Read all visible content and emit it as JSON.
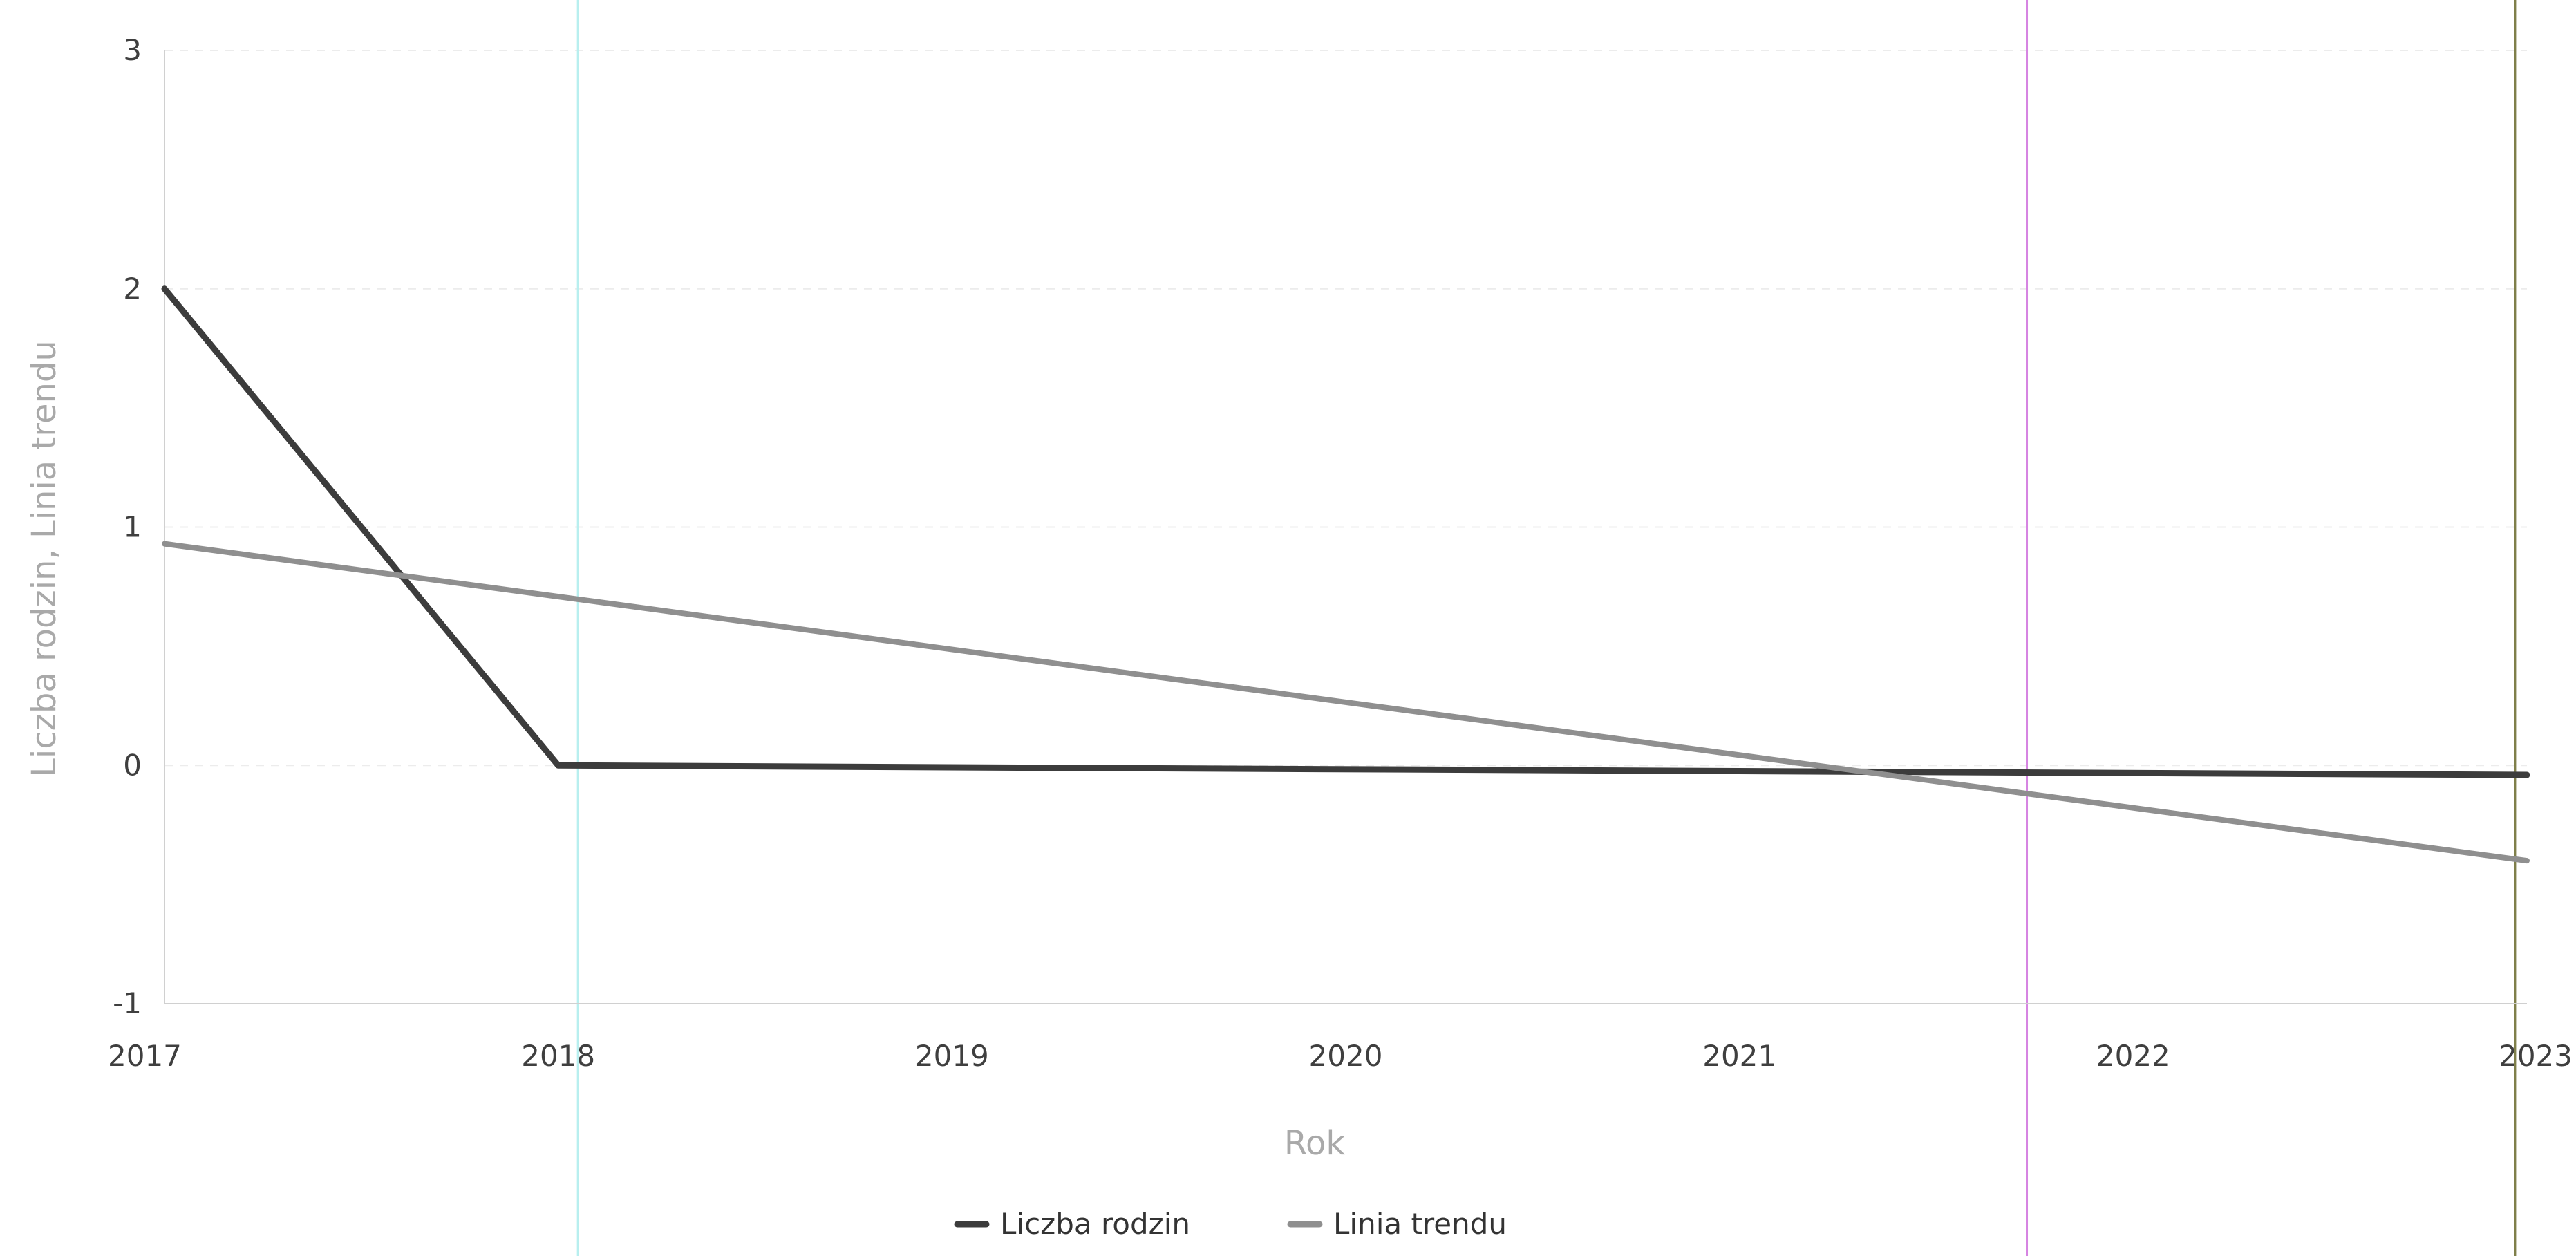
{
  "chart_data": {
    "type": "line",
    "title": "",
    "xlabel": "Rok",
    "ylabel": "Liczba rodzin, Linia trendu",
    "x": [
      2017,
      2018,
      2019,
      2020,
      2021,
      2022,
      2023
    ],
    "x_tick_labels": [
      "2017",
      "2018",
      "2019",
      "2020",
      "2021",
      "2022",
      "2023"
    ],
    "y_tick_labels": [
      "-1",
      "0",
      "1",
      "2",
      "3"
    ],
    "y_ticks": [
      -1,
      0,
      1,
      2,
      3
    ],
    "xlim": [
      2017,
      2023
    ],
    "ylim": [
      -1,
      3
    ],
    "grid": true,
    "legend_position": "bottom-center",
    "series": [
      {
        "name": "Liczba rodzin",
        "color": "#3c3c3c",
        "x": [
          2017,
          2018,
          2023
        ],
        "y": [
          2,
          0,
          -0.04
        ]
      },
      {
        "name": "Linia trendu",
        "color": "#8f8f8f",
        "x": [
          2017,
          2023
        ],
        "y": [
          0.93,
          -0.4
        ]
      }
    ],
    "reference_lines": [
      {
        "x": 2018.05,
        "color": "#b8efef"
      },
      {
        "x": 2021.73,
        "color": "#d684e2"
      },
      {
        "x": 2022.97,
        "color": "#7f7f4a"
      }
    ]
  }
}
